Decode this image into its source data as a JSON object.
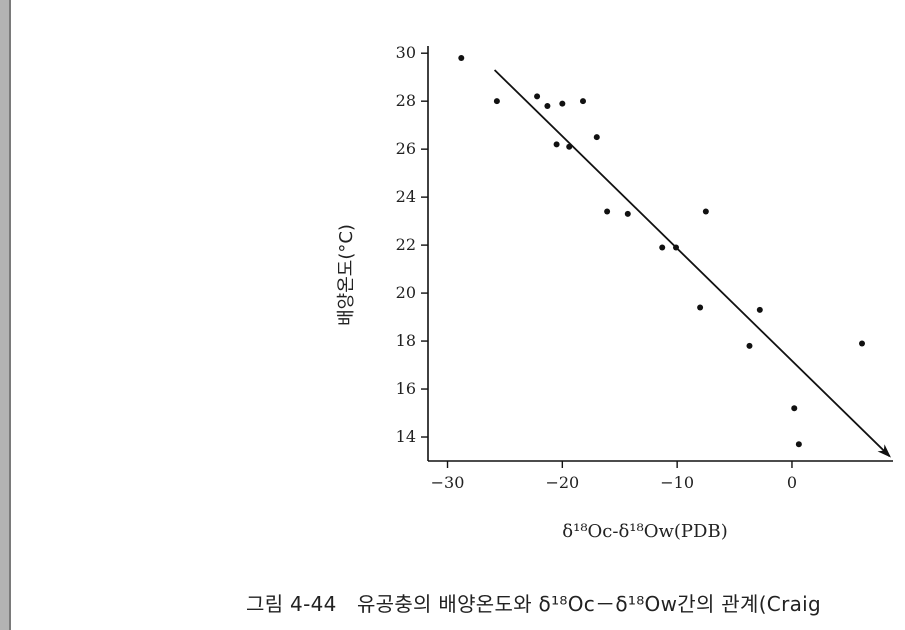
{
  "chart_data": {
    "type": "scatter",
    "xlabel": "δ¹⁸Oc-δ¹⁸Ow(PDB)",
    "ylabel": "배양온도(°C)",
    "xlim": [
      -31.7,
      8.8
    ],
    "ylim": [
      13,
      30.3
    ],
    "x_ticks": [
      -30,
      -20,
      -10,
      0
    ],
    "x_tick_labels": [
      "−30",
      "−20",
      "−10",
      "0"
    ],
    "y_ticks": [
      14,
      16,
      18,
      20,
      22,
      24,
      26,
      28,
      30
    ],
    "y_tick_labels": [
      "14",
      "16",
      "18",
      "20",
      "22",
      "24",
      "26",
      "28",
      "30"
    ],
    "grid": false,
    "points": [
      {
        "x": -28.8,
        "y": 29.8
      },
      {
        "x": -25.7,
        "y": 28.0
      },
      {
        "x": -22.2,
        "y": 28.2
      },
      {
        "x": -21.3,
        "y": 27.8
      },
      {
        "x": -20.0,
        "y": 27.9
      },
      {
        "x": -18.2,
        "y": 28.0
      },
      {
        "x": -20.5,
        "y": 26.2
      },
      {
        "x": -19.4,
        "y": 26.1
      },
      {
        "x": -17.0,
        "y": 26.5
      },
      {
        "x": -16.1,
        "y": 23.4
      },
      {
        "x": -14.3,
        "y": 23.3
      },
      {
        "x": -11.3,
        "y": 21.9
      },
      {
        "x": -10.1,
        "y": 21.9
      },
      {
        "x": -7.5,
        "y": 23.4
      },
      {
        "x": -8.0,
        "y": 19.4
      },
      {
        "x": -2.8,
        "y": 19.3
      },
      {
        "x": -3.7,
        "y": 17.8
      },
      {
        "x": 6.1,
        "y": 17.9
      },
      {
        "x": 0.2,
        "y": 15.2
      },
      {
        "x": 0.6,
        "y": 13.7
      }
    ],
    "trend_line": {
      "x": [
        -25.9,
        8.5
      ],
      "y": [
        29.3,
        13.2
      ],
      "arrow": "end"
    }
  },
  "caption": "그림 4-44　유공충의 배양온도와 δ¹⁸Oc－δ¹⁸Ow간의 관계(Craig"
}
